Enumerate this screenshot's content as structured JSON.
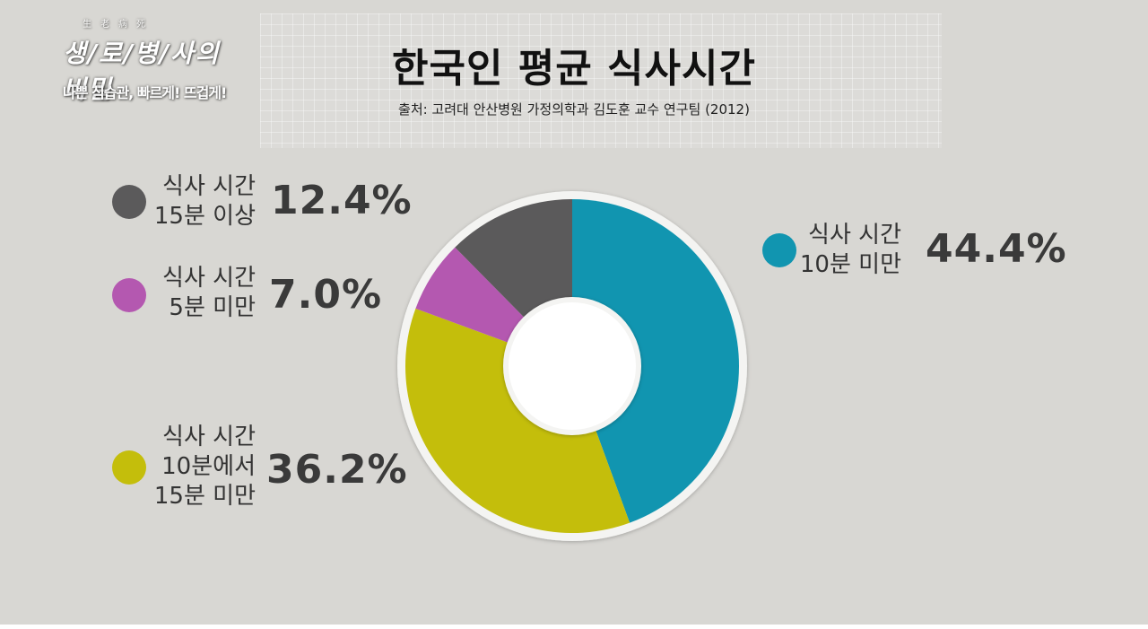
{
  "branding": {
    "logo_small": "生老病死",
    "logo_main": "생/로/병/사의 비밀",
    "logo_sub": "나쁜 식습관, 빠르게! 뜨겁게!"
  },
  "chart_data": {
    "type": "pie",
    "donut": true,
    "title": "한국인 평균 식사시간",
    "subtitle": "출처: 고려대 안산병원 가정의학과 김도훈 교수 연구팀 (2012)",
    "unit": "%",
    "slices": [
      {
        "label": "식사 시간\n10분 미만",
        "value": 44.4,
        "value_label": "44.4%",
        "color": "#1195b0"
      },
      {
        "label": "식사 시간\n10분에서\n15분 미만",
        "value": 36.2,
        "value_label": "36.2%",
        "color": "#c4be0b"
      },
      {
        "label": "식사 시간\n5분 미만",
        "value": 7.0,
        "value_label": "7.0%",
        "color": "#b458b0"
      },
      {
        "label": "식사 시간\n15분 이상",
        "value": 12.4,
        "value_label": "12.4%",
        "color": "#5b5a5b"
      }
    ],
    "start_angle": "12 o'clock",
    "direction": "clockwise"
  }
}
